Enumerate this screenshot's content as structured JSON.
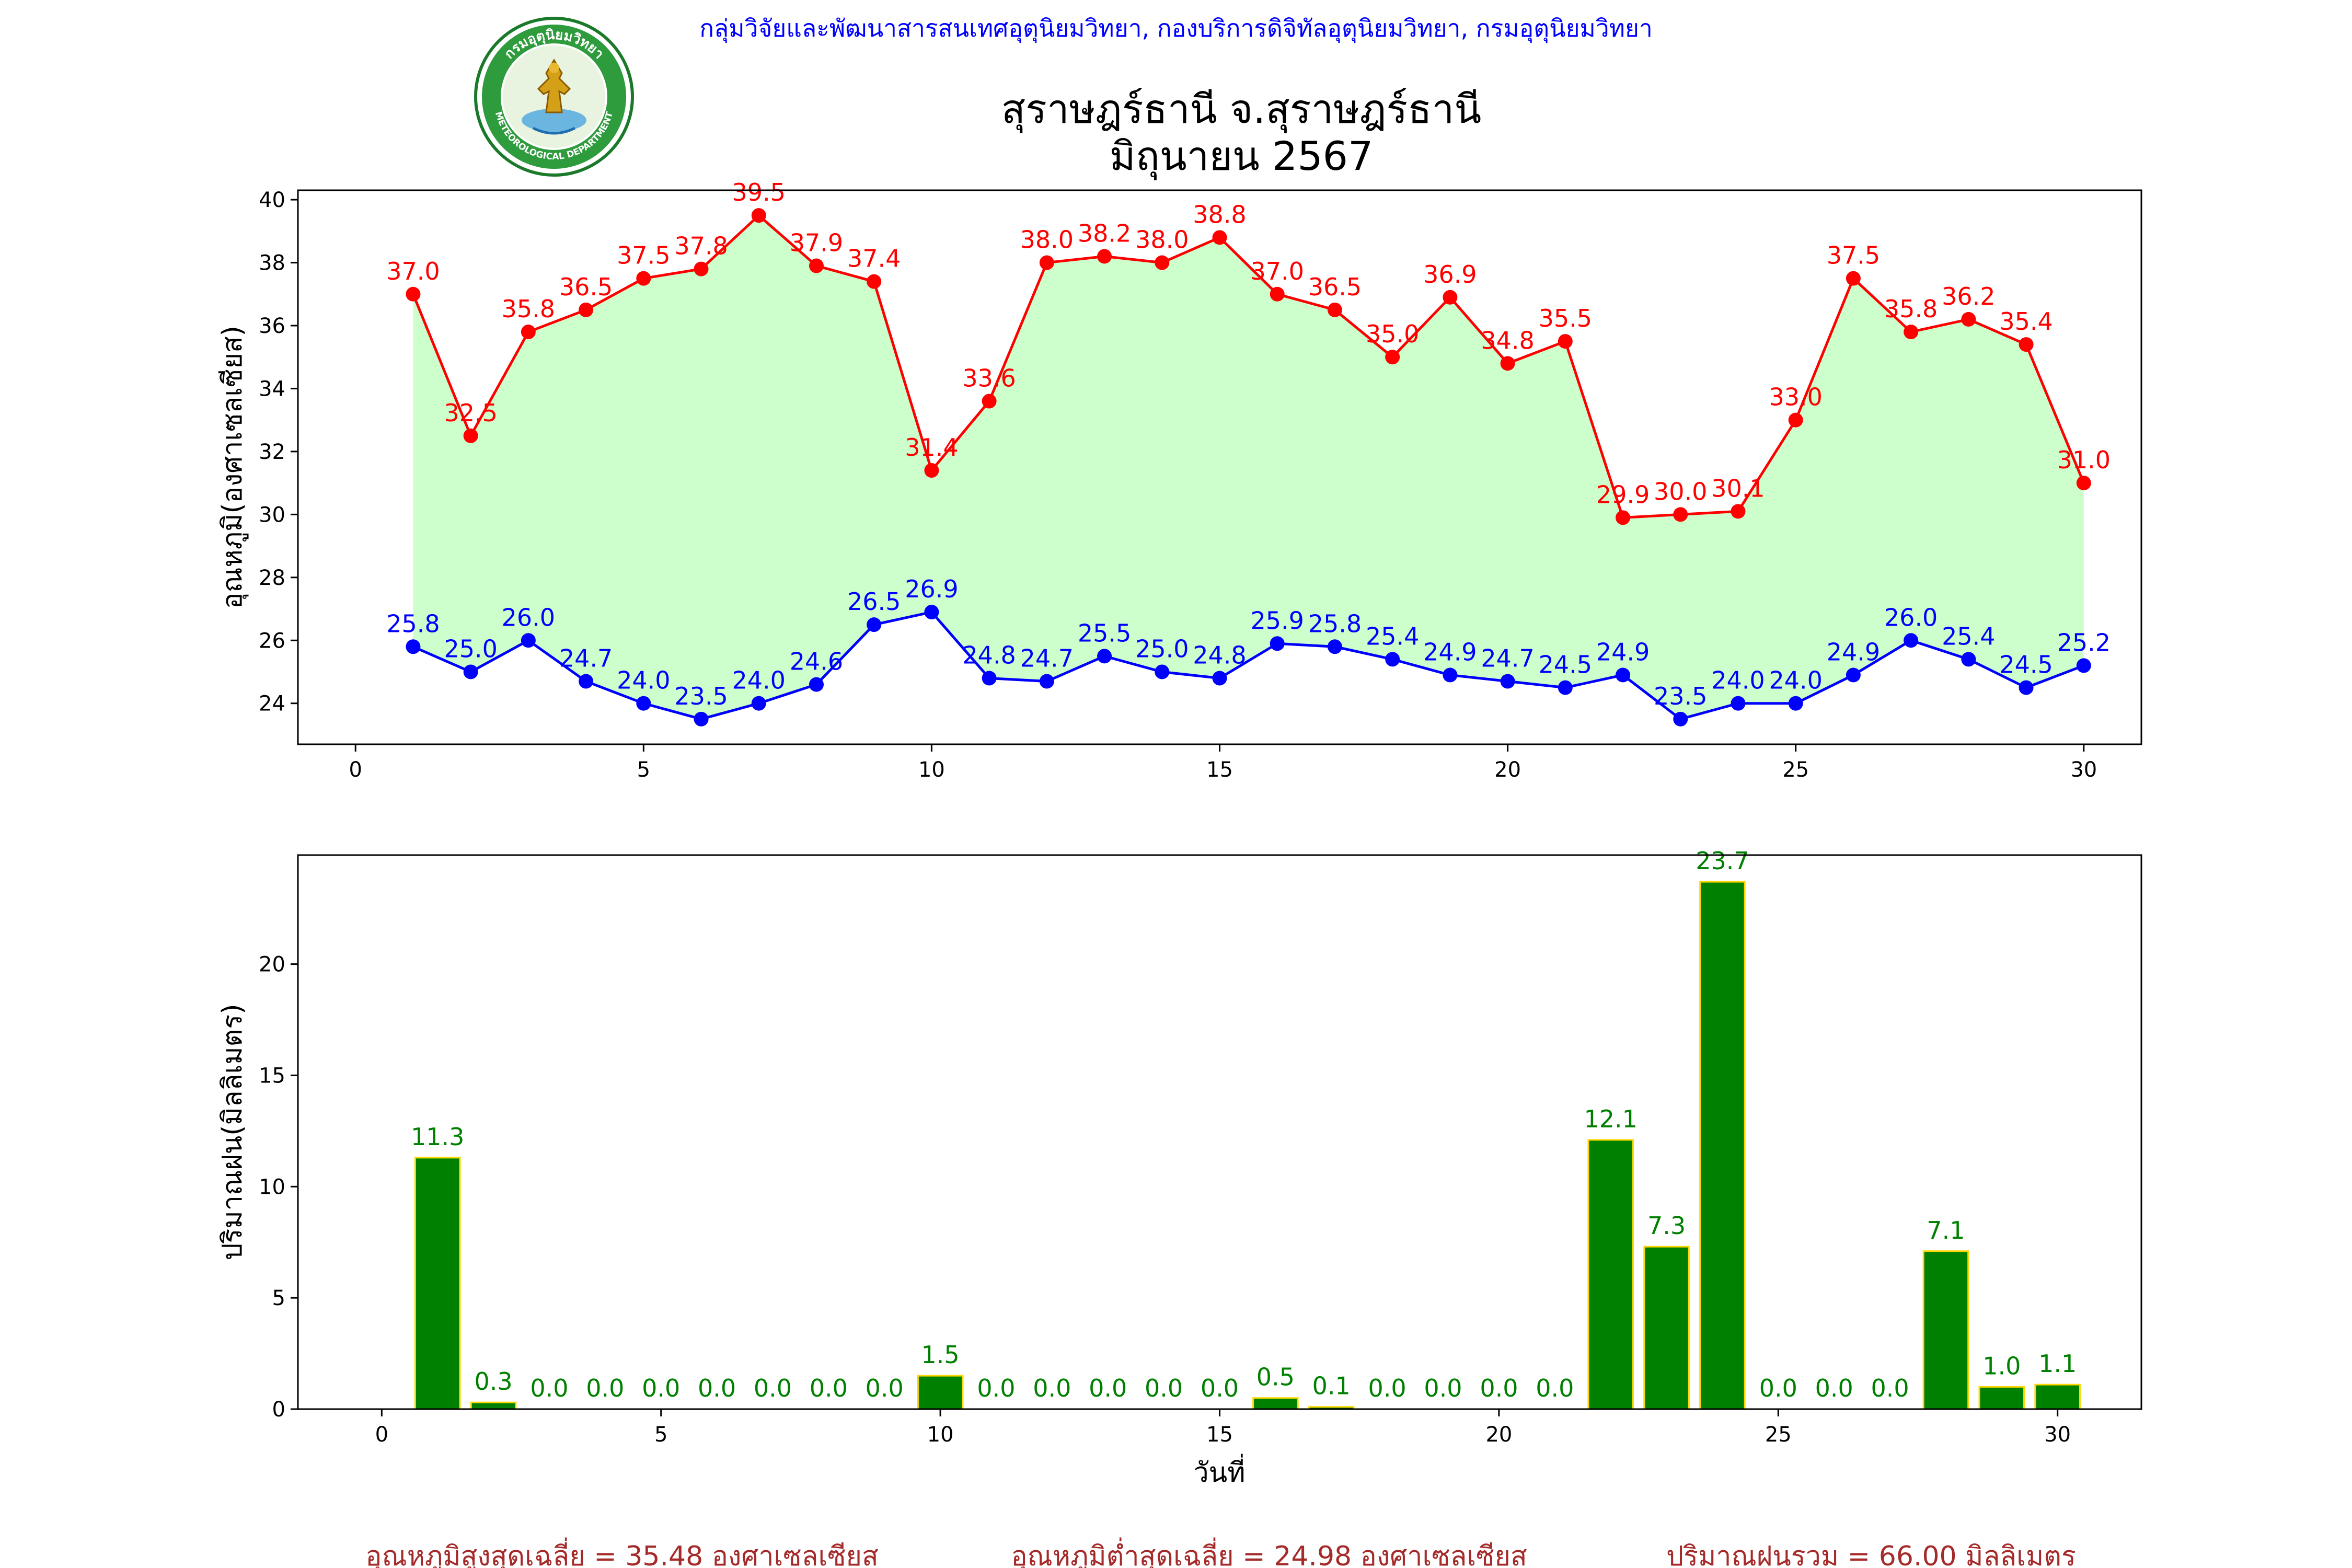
{
  "header": {
    "agency_line": "กลุ่มวิจัยและพัฒนาสารสนเทศอุตุนิยมวิทยา, กองบริการดิจิทัลอุตุนิยมวิทยา, กรมอุตุนิยมวิทยา",
    "title_line1": "สุราษฎร์ธานี จ.สุราษฎร์ธานี",
    "title_line2": "มิถุนายน 2567",
    "logo_text": "กรมอุตุนิยมวิทยา",
    "logo_text_en": "METEOROLOGICAL DEPARTMENT"
  },
  "colors": {
    "max_line": "#ff0000",
    "min_line": "#0000ff",
    "fill": "#ccffcc",
    "bar_fill": "#008000",
    "bar_edge": "#ffd700",
    "agency_text": "#0000ff",
    "footer_text": "#a52a2a"
  },
  "chart_data": [
    {
      "type": "line",
      "name": "temperature",
      "ylabel": "อุณหภูมิ(องศาเซลเซียส)",
      "xlim": [
        -1,
        31
      ],
      "ylim": [
        22.7,
        40.3
      ],
      "xticks": [
        0,
        5,
        10,
        15,
        20,
        25,
        30
      ],
      "yticks": [
        24,
        26,
        28,
        30,
        32,
        34,
        36,
        38,
        40
      ],
      "fill_between": true,
      "x": [
        1,
        2,
        3,
        4,
        5,
        6,
        7,
        8,
        9,
        10,
        11,
        12,
        13,
        14,
        15,
        16,
        17,
        18,
        19,
        20,
        21,
        22,
        23,
        24,
        25,
        26,
        27,
        28,
        29,
        30
      ],
      "series": [
        {
          "role": "max",
          "values": [
            37.0,
            32.5,
            35.8,
            36.5,
            37.5,
            37.8,
            39.5,
            37.9,
            37.4,
            31.4,
            33.6,
            38.0,
            38.2,
            38.0,
            38.8,
            37.0,
            36.5,
            35.0,
            36.9,
            34.8,
            35.5,
            29.9,
            30.0,
            30.1,
            33.0,
            37.5,
            35.8,
            36.2,
            35.4,
            31.0
          ]
        },
        {
          "role": "min",
          "values": [
            25.8,
            25.0,
            26.0,
            24.7,
            24.0,
            23.5,
            24.0,
            24.6,
            26.5,
            26.9,
            24.8,
            24.7,
            25.5,
            25.0,
            24.8,
            25.9,
            25.8,
            25.4,
            24.9,
            24.7,
            24.5,
            24.9,
            23.5,
            24.0,
            24.0,
            24.9,
            26.0,
            25.4,
            24.5,
            25.2
          ]
        }
      ]
    },
    {
      "type": "bar",
      "name": "rainfall",
      "ylabel": "ปริมาณฝน(มิลลิเมตร)",
      "xlabel": "วันที่",
      "xlim": [
        -1.5,
        31.5
      ],
      "ylim": [
        0,
        24.9
      ],
      "xticks": [
        0,
        5,
        10,
        15,
        20,
        25,
        30
      ],
      "yticks": [
        0,
        5,
        10,
        15,
        20
      ],
      "x": [
        1,
        2,
        3,
        4,
        5,
        6,
        7,
        8,
        9,
        10,
        11,
        12,
        13,
        14,
        15,
        16,
        17,
        18,
        19,
        20,
        21,
        22,
        23,
        24,
        25,
        26,
        27,
        28,
        29,
        30
      ],
      "values": [
        11.3,
        0.3,
        0.0,
        0.0,
        0.0,
        0.0,
        0.0,
        0.0,
        0.0,
        1.5,
        0.0,
        0.0,
        0.0,
        0.0,
        0.0,
        0.5,
        0.1,
        0.0,
        0.0,
        0.0,
        0.0,
        12.1,
        7.3,
        23.7,
        0.0,
        0.0,
        0.0,
        7.1,
        1.0,
        1.1
      ]
    }
  ],
  "footer": {
    "avg_max": "อุณหภูมิสูงสุดเฉลี่ย = 35.48 องศาเซลเซียส",
    "avg_min": "อุณหภูมิต่ำสุดเฉลี่ย = 24.98 องศาเซลเซียส",
    "total_rain": "ปริมาณฝนรวม = 66.00 มิลลิเมตร"
  }
}
